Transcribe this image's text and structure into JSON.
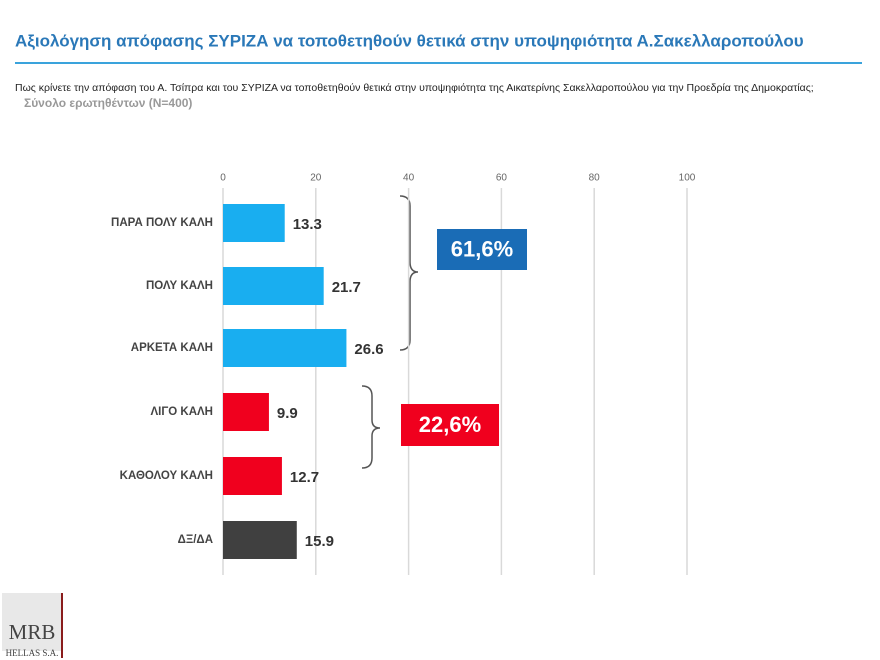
{
  "chart_data": {
    "type": "bar",
    "orientation": "horizontal",
    "title": "Αξιολόγηση απόφασης ΣΥΡΙΖΑ να τοποθετηθούν θετικά στην υποψηφιότητα Α.Σακελλαροπούλου",
    "subtitle": "Πως κρίνετε την απόφαση του Α. Τσίπρα και του ΣΥΡΙΖΑ να τοποθετηθούν θετικά στην υποψηφιότητα της Αικατερίνης Σακελλαροπούλου για την Προεδρία της Δημοκρατίας;",
    "note": "Σύνολο ερωτηθέντων (N=400)",
    "categories": [
      "ΠΑΡΑ ΠΟΛΥ ΚΑΛΗ",
      "ΠΟΛΥ ΚΑΛΗ",
      "ΑΡΚΕΤΑ ΚΑΛΗ",
      "ΛΙΓΟ ΚΑΛΗ",
      "ΚΑΘΟΛΟΥ ΚΑΛΗ",
      "ΔΞ/ΔΑ"
    ],
    "values": [
      13.3,
      21.7,
      26.6,
      9.9,
      12.7,
      15.9
    ],
    "colors": [
      "#19aef0",
      "#19aef0",
      "#19aef0",
      "#f0001e",
      "#f0001e",
      "#404040"
    ],
    "xlim": [
      0,
      100
    ],
    "xticks": [
      0,
      20,
      40,
      60,
      80,
      100
    ],
    "grid": true,
    "annotations": [
      {
        "text": "61,6%",
        "color": "#1a6cb6"
      },
      {
        "text": "22,6%",
        "color": "#f0001e"
      }
    ]
  },
  "logo": {
    "name": "MRB",
    "sub": "HELLAS S.A."
  }
}
